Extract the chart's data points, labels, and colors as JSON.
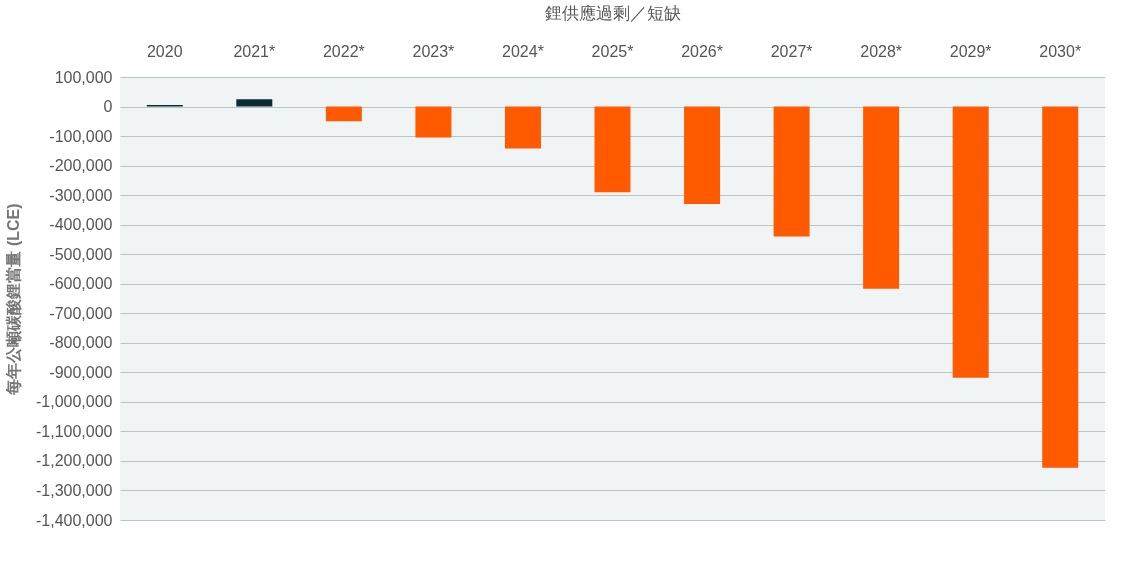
{
  "chart_data": {
    "type": "bar",
    "title": "鋰供應過剩／短缺",
    "ylabel": "每年公噸碳酸鋰當量 (LCE)",
    "categories": [
      "2020",
      "2021*",
      "2022*",
      "2023*",
      "2024*",
      "2025*",
      "2026*",
      "2027*",
      "2028*",
      "2029*",
      "2030*"
    ],
    "values": [
      5000,
      25000,
      -50000,
      -105000,
      -142000,
      -290000,
      -330000,
      -440000,
      -617000,
      -918000,
      -1223000
    ],
    "colors": [
      "#0d2b33",
      "#0d2b33",
      "#ff5a00",
      "#ff5a00",
      "#ff5a00",
      "#ff5a00",
      "#ff5a00",
      "#ff5a00",
      "#ff5a00",
      "#ff5a00",
      "#ff5a00"
    ],
    "ylim": [
      -1400000,
      100000
    ],
    "yticks": [
      {
        "value": 100000,
        "label": "100,000"
      },
      0,
      {
        "value": -100000,
        "label": "-100,000"
      },
      {
        "value": -200000,
        "label": "-200,000"
      },
      {
        "value": -300000,
        "label": "-300,000"
      },
      {
        "value": -400000,
        "label": "-400,000"
      },
      {
        "value": -500000,
        "label": "-500,000"
      },
      {
        "value": -600000,
        "label": "-600,000"
      },
      {
        "value": -700000,
        "label": "-700,000"
      },
      {
        "value": -800000,
        "label": "-800,000"
      },
      {
        "value": -900000,
        "label": "-900,000"
      },
      {
        "value": -1000000,
        "label": "-1,000,000"
      },
      {
        "value": -1100000,
        "label": "-1,100,000"
      },
      {
        "value": -1200000,
        "label": "-1,200,000"
      },
      {
        "value": -1300000,
        "label": "-1,300,000"
      },
      {
        "value": -1400000,
        "label": "-1,400,000"
      }
    ],
    "grid": true
  }
}
